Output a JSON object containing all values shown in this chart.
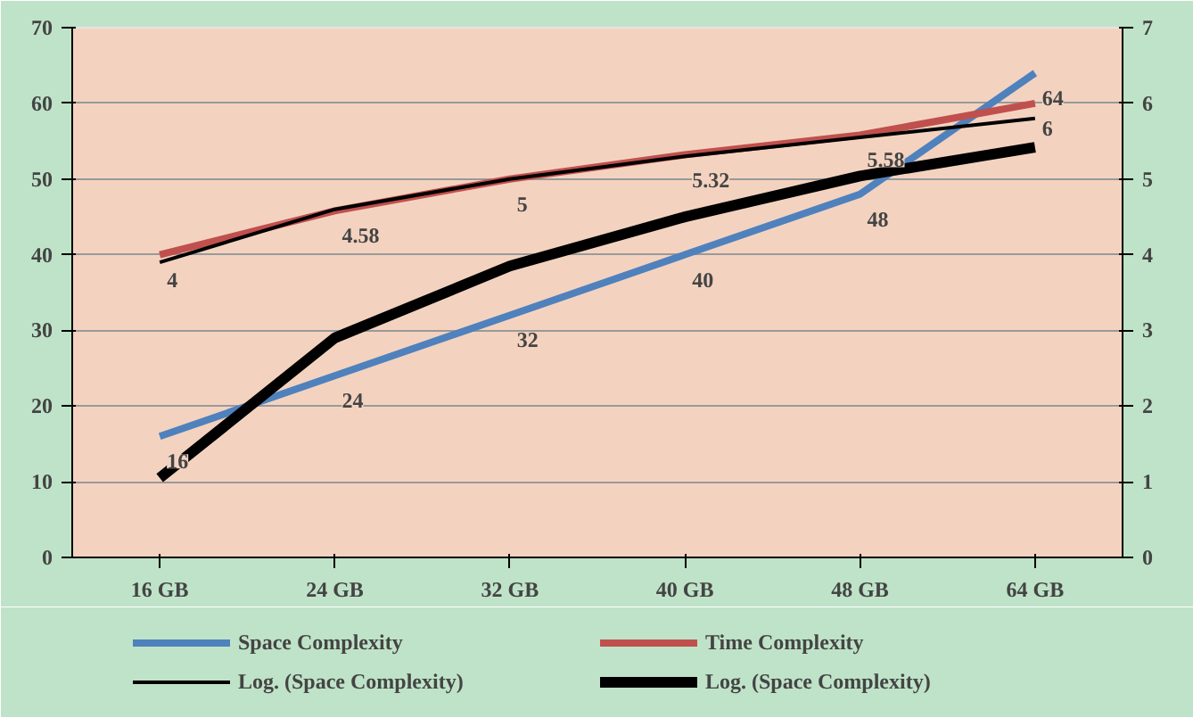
{
  "chart_data": {
    "type": "line",
    "categories": [
      "16 GB",
      "24 GB",
      "32 GB",
      "40 GB",
      "48 GB",
      "64 GB"
    ],
    "series": [
      {
        "name": "Space Complexity",
        "color": "#4f81bd",
        "values": [
          16,
          24,
          32,
          40,
          48,
          64
        ],
        "value_labels": [
          "16",
          "24",
          "32",
          "40",
          "48",
          "64"
        ]
      },
      {
        "name": "Time Complexity",
        "color": "#c0504d",
        "values": [
          4,
          4.58,
          5,
          5.32,
          5.58,
          6
        ],
        "axis": "y2",
        "value_labels": [
          "4",
          "4.58",
          "5",
          "5.32",
          "5.58",
          "6"
        ]
      },
      {
        "name": "Log. (Space Complexity)",
        "color": "#000000",
        "values": [
          3.9,
          4.6,
          5.0,
          5.3,
          5.55,
          5.8
        ],
        "axis": "y2"
      },
      {
        "name": "Log. (Space Complexity)",
        "color": "#000000",
        "values": [
          10.5,
          29,
          38.5,
          45,
          50.4,
          54.2
        ]
      }
    ],
    "ylim": [
      0,
      70
    ],
    "yticks": [
      0,
      10,
      20,
      30,
      40,
      50,
      60,
      70
    ],
    "y2lim": [
      0,
      7
    ],
    "y2ticks": [
      0,
      1,
      2,
      3,
      4,
      5,
      6,
      7
    ],
    "grid": "y",
    "legend": "bottom",
    "marker": "none",
    "line_style": "solid"
  }
}
